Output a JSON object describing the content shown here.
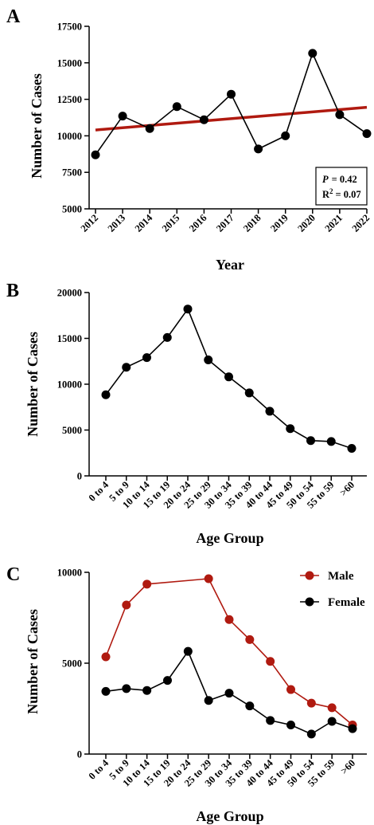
{
  "chart_data": [
    {
      "panel": "A",
      "type": "line",
      "xlabel": "Year",
      "ylabel": "Number of Cases",
      "x": [
        "2012",
        "2013",
        "2014",
        "2015",
        "2016",
        "2017",
        "2018",
        "2019",
        "2020",
        "2021",
        "2022"
      ],
      "values": [
        8700,
        11350,
        10500,
        12000,
        11100,
        12850,
        9100,
        10000,
        15650,
        11450,
        10150
      ],
      "ylim": [
        5000,
        17500
      ],
      "yticks": [
        "5000",
        "7500",
        "10000",
        "12500",
        "15000",
        "17500"
      ],
      "trend": {
        "start": 10400,
        "end": 11950,
        "color": "#b01a10"
      },
      "stats": {
        "p_label": "P",
        "p_value": "= 0.42",
        "r2_label": "R",
        "r2_sup": "2",
        "r2_value": "= 0.07"
      },
      "series_color": "#000000"
    },
    {
      "panel": "B",
      "type": "line",
      "xlabel": "Age Group",
      "ylabel": "Number of Cases",
      "x": [
        "0 to 4",
        "5 to 9",
        "10 to 14",
        "15 to 19",
        "20 to 24",
        "25 to 29",
        "30 to 34",
        "35 to 39",
        "40 to 44",
        "45 to 49",
        "50 to 54",
        "55 to 59",
        ">60"
      ],
      "values": [
        8850,
        11850,
        12900,
        15100,
        18200,
        12650,
        10800,
        9050,
        7050,
        5150,
        3850,
        3750,
        3000
      ],
      "ylim": [
        0,
        20000
      ],
      "yticks": [
        "0",
        "5000",
        "10000",
        "15000",
        "20000"
      ],
      "series_color": "#000000"
    },
    {
      "panel": "C",
      "type": "line",
      "xlabel": "Age Group",
      "ylabel": "Number of Cases",
      "x": [
        "0 to 4",
        "5 to 9",
        "10 to 14",
        "15 to 19",
        "20 to 24",
        "25 to 29",
        "30 to 34",
        "35 to 39",
        "40 to 44",
        "45 to 49",
        "50 to 54",
        "55 to 59",
        ">60"
      ],
      "ylim": [
        0,
        10000
      ],
      "yticks": [
        "0",
        "5000",
        "10000"
      ],
      "legend": "top-right",
      "series": [
        {
          "name": "Male",
          "color": "#b01a10",
          "values": [
            5350,
            8200,
            9350,
            null,
            null,
            9650,
            7400,
            6300,
            5100,
            3550,
            2800,
            2550,
            1600
          ]
        },
        {
          "name": "Female",
          "color": "#000000",
          "values": [
            3450,
            3600,
            3500,
            4050,
            5650,
            2950,
            3350,
            2650,
            1850,
            1600,
            1100,
            1800,
            1400
          ]
        }
      ]
    }
  ]
}
